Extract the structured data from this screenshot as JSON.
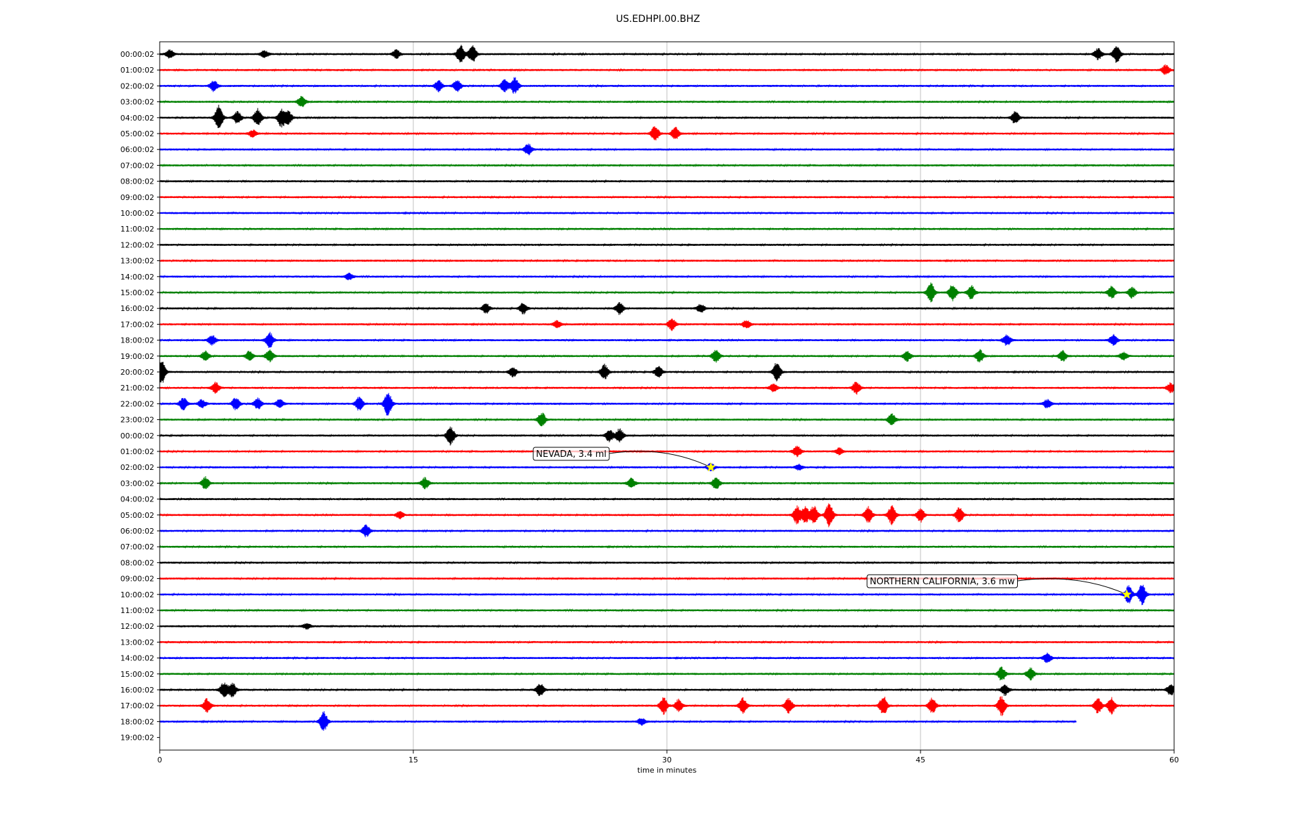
{
  "chart_data": {
    "type": "line",
    "title": "US.EDHPI.00.BHZ",
    "xlabel": "time in minutes",
    "ylabel": "",
    "xlim": [
      0,
      60
    ],
    "x_ticks": [
      "0",
      "15",
      "30",
      "45",
      "60"
    ],
    "grid": "vertical lines at x ticks",
    "trace_colors": [
      "#000000",
      "#ff0000",
      "#0000ff",
      "#008000"
    ],
    "y_tick_labels": [
      "00:00:02",
      "01:00:02",
      "02:00:02",
      "03:00:02",
      "04:00:02",
      "05:00:02",
      "06:00:02",
      "07:00:02",
      "08:00:02",
      "09:00:02",
      "10:00:02",
      "11:00:02",
      "12:00:02",
      "13:00:02",
      "14:00:02",
      "15:00:02",
      "16:00:02",
      "17:00:02",
      "18:00:02",
      "19:00:02",
      "20:00:02",
      "21:00:02",
      "22:00:02",
      "23:00:02",
      "00:00:02",
      "01:00:02",
      "02:00:02",
      "03:00:02",
      "04:00:02",
      "05:00:02",
      "06:00:02",
      "07:00:02",
      "08:00:02",
      "09:00:02",
      "10:00:02",
      "11:00:02",
      "12:00:02",
      "13:00:02",
      "14:00:02",
      "15:00:02",
      "16:00:02",
      "17:00:02",
      "18:00:02",
      "19:00:02"
    ],
    "trace_end_minute": [
      60,
      60,
      60,
      60,
      60,
      60,
      60,
      60,
      60,
      60,
      60,
      60,
      60,
      60,
      60,
      60,
      60,
      60,
      60,
      60,
      60,
      60,
      60,
      60,
      60,
      60,
      60,
      60,
      60,
      60,
      60,
      60,
      60,
      60,
      60,
      60,
      60,
      60,
      60,
      60,
      60,
      60,
      54.2,
      0
    ],
    "bursts": [
      {
        "row": 0,
        "minute": 0.6,
        "amp": 6
      },
      {
        "row": 0,
        "minute": 6.2,
        "amp": 5
      },
      {
        "row": 0,
        "minute": 14,
        "amp": 6
      },
      {
        "row": 0,
        "minute": 17.8,
        "amp": 14
      },
      {
        "row": 0,
        "minute": 18.5,
        "amp": 12
      },
      {
        "row": 0,
        "minute": 55.5,
        "amp": 8
      },
      {
        "row": 0,
        "minute": 56.6,
        "amp": 12
      },
      {
        "row": 1,
        "minute": 59.5,
        "amp": 7
      },
      {
        "row": 2,
        "minute": 3.2,
        "amp": 8
      },
      {
        "row": 2,
        "minute": 16.5,
        "amp": 8
      },
      {
        "row": 2,
        "minute": 17.6,
        "amp": 9
      },
      {
        "row": 2,
        "minute": 20.4,
        "amp": 9
      },
      {
        "row": 2,
        "minute": 21,
        "amp": 12
      },
      {
        "row": 3,
        "minute": 8.4,
        "amp": 8
      },
      {
        "row": 4,
        "minute": 3.5,
        "amp": 18
      },
      {
        "row": 4,
        "minute": 4.6,
        "amp": 9
      },
      {
        "row": 4,
        "minute": 5.8,
        "amp": 13
      },
      {
        "row": 4,
        "minute": 7.2,
        "amp": 13
      },
      {
        "row": 4,
        "minute": 7.6,
        "amp": 9
      },
      {
        "row": 4,
        "minute": 50.6,
        "amp": 9
      },
      {
        "row": 5,
        "minute": 5.5,
        "amp": 5
      },
      {
        "row": 5,
        "minute": 29.3,
        "amp": 11
      },
      {
        "row": 5,
        "minute": 30.5,
        "amp": 9
      },
      {
        "row": 6,
        "minute": 21.8,
        "amp": 8
      },
      {
        "row": 14,
        "minute": 11.2,
        "amp": 5
      },
      {
        "row": 15,
        "minute": 45.6,
        "amp": 14
      },
      {
        "row": 15,
        "minute": 46.9,
        "amp": 12
      },
      {
        "row": 15,
        "minute": 48,
        "amp": 10
      },
      {
        "row": 15,
        "minute": 56.3,
        "amp": 9
      },
      {
        "row": 15,
        "minute": 57.5,
        "amp": 8
      },
      {
        "row": 16,
        "minute": 19.3,
        "amp": 7
      },
      {
        "row": 16,
        "minute": 21.5,
        "amp": 8
      },
      {
        "row": 16,
        "minute": 27.2,
        "amp": 9
      },
      {
        "row": 16,
        "minute": 32,
        "amp": 6
      },
      {
        "row": 17,
        "minute": 23.5,
        "amp": 5
      },
      {
        "row": 17,
        "minute": 30.3,
        "amp": 9
      },
      {
        "row": 17,
        "minute": 34.7,
        "amp": 6
      },
      {
        "row": 18,
        "minute": 3.1,
        "amp": 7
      },
      {
        "row": 18,
        "minute": 6.5,
        "amp": 11
      },
      {
        "row": 18,
        "minute": 50.1,
        "amp": 8
      },
      {
        "row": 18,
        "minute": 56.4,
        "amp": 8
      },
      {
        "row": 19,
        "minute": 2.7,
        "amp": 7
      },
      {
        "row": 19,
        "minute": 5.3,
        "amp": 7
      },
      {
        "row": 19,
        "minute": 6.5,
        "amp": 9
      },
      {
        "row": 19,
        "minute": 32.9,
        "amp": 9
      },
      {
        "row": 19,
        "minute": 44.2,
        "amp": 7
      },
      {
        "row": 19,
        "minute": 48.5,
        "amp": 9
      },
      {
        "row": 19,
        "minute": 53.4,
        "amp": 8
      },
      {
        "row": 19,
        "minute": 57,
        "amp": 6
      },
      {
        "row": 20,
        "minute": 0.1,
        "amp": 18
      },
      {
        "row": 20,
        "minute": 20.9,
        "amp": 7
      },
      {
        "row": 20,
        "minute": 26.3,
        "amp": 11
      },
      {
        "row": 20,
        "minute": 29.5,
        "amp": 8
      },
      {
        "row": 20,
        "minute": 36.5,
        "amp": 14
      },
      {
        "row": 21,
        "minute": 3.3,
        "amp": 8
      },
      {
        "row": 21,
        "minute": 36.3,
        "amp": 6
      },
      {
        "row": 21,
        "minute": 41.2,
        "amp": 9
      },
      {
        "row": 21,
        "minute": 59.8,
        "amp": 7
      },
      {
        "row": 22,
        "minute": 1.4,
        "amp": 9
      },
      {
        "row": 22,
        "minute": 2.5,
        "amp": 6
      },
      {
        "row": 22,
        "minute": 4.5,
        "amp": 9
      },
      {
        "row": 22,
        "minute": 5.8,
        "amp": 8
      },
      {
        "row": 22,
        "minute": 7.1,
        "amp": 6
      },
      {
        "row": 22,
        "minute": 11.8,
        "amp": 10
      },
      {
        "row": 22,
        "minute": 13.5,
        "amp": 18
      },
      {
        "row": 22,
        "minute": 52.5,
        "amp": 6
      },
      {
        "row": 23,
        "minute": 22.6,
        "amp": 10
      },
      {
        "row": 23,
        "minute": 43.3,
        "amp": 8
      },
      {
        "row": 24,
        "minute": 17.2,
        "amp": 14
      },
      {
        "row": 24,
        "minute": 26.6,
        "amp": 9
      },
      {
        "row": 24,
        "minute": 27.2,
        "amp": 10
      },
      {
        "row": 25,
        "minute": 37.7,
        "amp": 8
      },
      {
        "row": 25,
        "minute": 40.2,
        "amp": 5
      },
      {
        "row": 26,
        "minute": 32.6,
        "amp": 6
      },
      {
        "row": 26,
        "minute": 37.8,
        "amp": 4
      },
      {
        "row": 27,
        "minute": 2.7,
        "amp": 9
      },
      {
        "row": 27,
        "minute": 15.7,
        "amp": 8
      },
      {
        "row": 27,
        "minute": 27.9,
        "amp": 7
      },
      {
        "row": 27,
        "minute": 32.9,
        "amp": 9
      },
      {
        "row": 29,
        "minute": 14.2,
        "amp": 5
      },
      {
        "row": 29,
        "minute": 37.7,
        "amp": 13
      },
      {
        "row": 29,
        "minute": 38.2,
        "amp": 12
      },
      {
        "row": 29,
        "minute": 38.7,
        "amp": 13
      },
      {
        "row": 29,
        "minute": 39.6,
        "amp": 18
      },
      {
        "row": 29,
        "minute": 41.9,
        "amp": 12
      },
      {
        "row": 29,
        "minute": 43.3,
        "amp": 14
      },
      {
        "row": 29,
        "minute": 45,
        "amp": 10
      },
      {
        "row": 29,
        "minute": 47.3,
        "amp": 11
      },
      {
        "row": 30,
        "minute": 12.2,
        "amp": 9
      },
      {
        "row": 34,
        "minute": 57.3,
        "amp": 13
      },
      {
        "row": 34,
        "minute": 58.1,
        "amp": 15
      },
      {
        "row": 36,
        "minute": 8.7,
        "amp": 4
      },
      {
        "row": 38,
        "minute": 52.5,
        "amp": 7
      },
      {
        "row": 39,
        "minute": 49.8,
        "amp": 10
      },
      {
        "row": 39,
        "minute": 51.5,
        "amp": 9
      },
      {
        "row": 40,
        "minute": 3.8,
        "amp": 11
      },
      {
        "row": 40,
        "minute": 4.3,
        "amp": 10
      },
      {
        "row": 40,
        "minute": 22.5,
        "amp": 9
      },
      {
        "row": 40,
        "minute": 50,
        "amp": 8
      },
      {
        "row": 40,
        "minute": 59.8,
        "amp": 8
      },
      {
        "row": 41,
        "minute": 2.8,
        "amp": 10
      },
      {
        "row": 41,
        "minute": 29.8,
        "amp": 12
      },
      {
        "row": 41,
        "minute": 30.7,
        "amp": 9
      },
      {
        "row": 41,
        "minute": 34.5,
        "amp": 11
      },
      {
        "row": 41,
        "minute": 37.2,
        "amp": 11
      },
      {
        "row": 41,
        "minute": 42.8,
        "amp": 14
      },
      {
        "row": 41,
        "minute": 45.7,
        "amp": 11
      },
      {
        "row": 41,
        "minute": 49.8,
        "amp": 14
      },
      {
        "row": 41,
        "minute": 55.5,
        "amp": 11
      },
      {
        "row": 41,
        "minute": 56.3,
        "amp": 12
      },
      {
        "row": 42,
        "minute": 9.7,
        "amp": 14
      },
      {
        "row": 42,
        "minute": 28.5,
        "amp": 5
      }
    ],
    "events": [
      {
        "label": "NEVADA, 3.4 ml",
        "row": 26,
        "minute": 32.6
      },
      {
        "label": "NORTHERN CALIFORNIA, 3.6 mw",
        "row": 34,
        "minute": 57.2
      }
    ],
    "event_marker_color": "#ffff00"
  }
}
